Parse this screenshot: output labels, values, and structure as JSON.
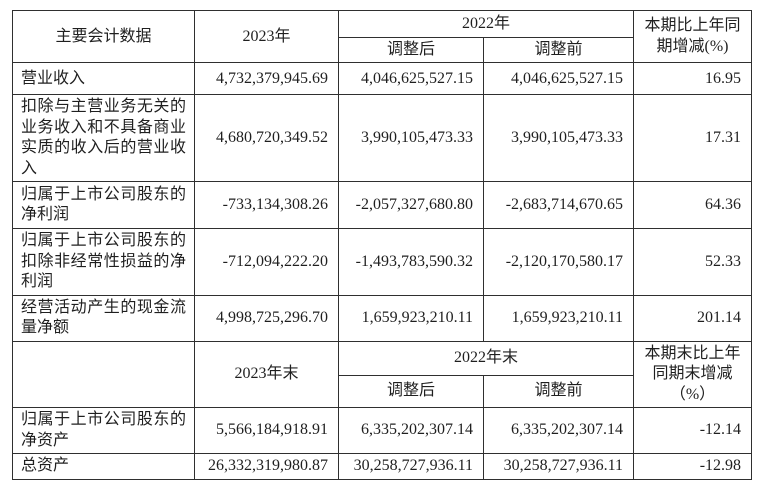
{
  "page": {
    "background_color": "#ffffff",
    "text_color": "#1f1f1f",
    "border_color": "#2f2f2f"
  },
  "section1": {
    "header": {
      "metric": "主要会计数据",
      "year_2023": "2023年",
      "year_2022": "2022年",
      "adjusted_after": "调整后",
      "adjusted_before": "调整前",
      "yoy_change": "本期比上年同期增减(%)"
    },
    "rows": [
      {
        "label": "营业收入",
        "y2023": "4,732,379,945.69",
        "after": "4,046,625,527.15",
        "before": "4,046,625,527.15",
        "change": "16.95"
      },
      {
        "label": "扣除与主营业务无关的业务收入和不具备商业实质的收入后的营业收入",
        "y2023": "4,680,720,349.52",
        "after": "3,990,105,473.33",
        "before": "3,990,105,473.33",
        "change": "17.31"
      },
      {
        "label": "归属于上市公司股东的净利润",
        "y2023": "-733,134,308.26",
        "after": "-2,057,327,680.80",
        "before": "-2,683,714,670.65",
        "change": "64.36"
      },
      {
        "label": "归属于上市公司股东的扣除非经常性损益的净利润",
        "y2023": "-712,094,222.20",
        "after": "-1,493,783,590.32",
        "before": "-2,120,170,580.17",
        "change": "52.33"
      },
      {
        "label": "经营活动产生的现金流量净额",
        "y2023": "4,998,725,296.70",
        "after": "1,659,923,210.11",
        "before": "1,659,923,210.11",
        "change": "201.14"
      }
    ]
  },
  "section2": {
    "header": {
      "year_2023": "2023年末",
      "year_2022": "2022年末",
      "adjusted_after": "调整后",
      "adjusted_before": "调整前",
      "yoy_change": "本期末比上年同期末增减（%）"
    },
    "rows": [
      {
        "label": "归属于上市公司股东的净资产",
        "y2023": "5,566,184,918.91",
        "after": "6,335,202,307.14",
        "before": "6,335,202,307.14",
        "change": "-12.14"
      },
      {
        "label": "总资产",
        "y2023": "26,332,319,980.87",
        "after": "30,258,727,936.11",
        "before": "30,258,727,936.11",
        "change": "-12.98"
      }
    ]
  }
}
